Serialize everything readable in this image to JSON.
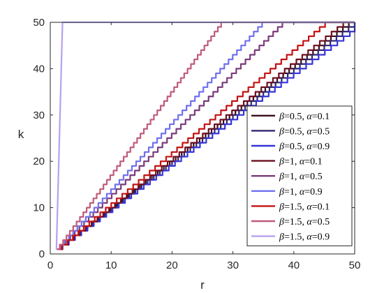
{
  "chart_data": {
    "type": "line",
    "title": "",
    "xlabel": "r",
    "ylabel": "k",
    "xlim": [
      0,
      50
    ],
    "ylim": [
      0,
      50
    ],
    "xticks": [
      0,
      10,
      20,
      30,
      40,
      50
    ],
    "yticks": [
      0,
      10,
      20,
      30,
      40,
      50
    ],
    "xtick_labels": [
      "0",
      "10",
      "20",
      "30",
      "40",
      "50"
    ],
    "ytick_labels": [
      "0",
      "10",
      "20",
      "30",
      "40",
      "50"
    ],
    "grid": false,
    "legend_position": "bottom-right",
    "series": [
      {
        "name": "β=0.5, α=0.1",
        "greek": "β",
        "beta": "0.5",
        "alpha_sym": "α",
        "alpha": "0.1",
        "color": "#3a0d1a",
        "slope": 1.02,
        "x_end": 49.0
      },
      {
        "name": "β=0.5, α=0.5",
        "greek": "β",
        "beta": "0.5",
        "alpha_sym": "α",
        "alpha": "0.5",
        "color": "#2e2670",
        "slope": 1.0,
        "x_end": 49.5
      },
      {
        "name": "β=0.5, α=0.9",
        "greek": "β",
        "beta": "0.5",
        "alpha_sym": "α",
        "alpha": "0.9",
        "color": "#3535d8",
        "slope": 0.975,
        "x_end": 50.0
      },
      {
        "name": "β=1, α=0.1",
        "greek": "β",
        "beta": "1",
        "alpha_sym": "α",
        "alpha": "0.1",
        "color": "#6b0d1e",
        "slope": 1.04,
        "x_end": 48.0
      },
      {
        "name": "β=1, α=0.5",
        "greek": "β",
        "beta": "1",
        "alpha_sym": "α",
        "alpha": "0.5",
        "color": "#7a3a7a",
        "slope": 1.32,
        "x_end": 38.5
      },
      {
        "name": "β=1, α=0.9",
        "greek": "β",
        "beta": "1",
        "alpha_sym": "α",
        "alpha": "0.9",
        "color": "#7070ee",
        "slope": 1.45,
        "x_end": 35.0
      },
      {
        "name": "β=1.5, α=0.1",
        "greek": "β",
        "beta": "1.5",
        "alpha_sym": "α",
        "alpha": "0.1",
        "color": "#c41212",
        "slope": 1.11,
        "x_end": 45.0
      },
      {
        "name": "β=1.5, α=0.5",
        "greek": "β",
        "beta": "1.5",
        "alpha_sym": "α",
        "alpha": "0.5",
        "color": "#c05a7a",
        "slope": 1.81,
        "x_end": 28.2
      },
      {
        "name": "β=1.5, α=0.9",
        "greek": "β",
        "beta": "1.5",
        "alpha_sym": "α",
        "alpha": "0.9",
        "color": "#b6a2ee",
        "slope": 49.0,
        "x_end": 1.0
      }
    ],
    "x_start": 1,
    "y_start": 1
  }
}
